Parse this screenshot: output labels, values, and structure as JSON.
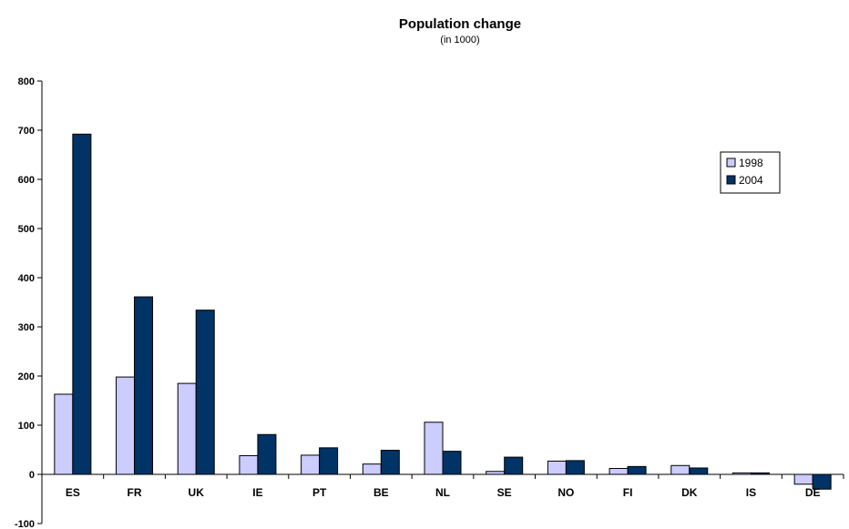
{
  "chart_data": {
    "type": "bar",
    "title": "Population change",
    "subtitle": "(in 1000)",
    "xlabel": "",
    "ylabel": "",
    "ylim": [
      -100,
      800
    ],
    "yticks": [
      -100,
      0,
      100,
      200,
      300,
      400,
      500,
      600,
      700,
      800
    ],
    "grid": false,
    "legend_position": "right",
    "categories": [
      "ES",
      "FR",
      "UK",
      "IE",
      "PT",
      "BE",
      "NL",
      "SE",
      "NO",
      "FI",
      "DK",
      "IS",
      "DE"
    ],
    "series": [
      {
        "name": "1998",
        "color": "#ccccff",
        "values": [
          163,
          198,
          185,
          38,
          39,
          21,
          106,
          6,
          27,
          12,
          18,
          3,
          -20
        ]
      },
      {
        "name": "2004",
        "color": "#003366",
        "values": [
          692,
          361,
          334,
          81,
          54,
          49,
          47,
          35,
          28,
          16,
          13,
          3,
          -30
        ]
      }
    ]
  }
}
